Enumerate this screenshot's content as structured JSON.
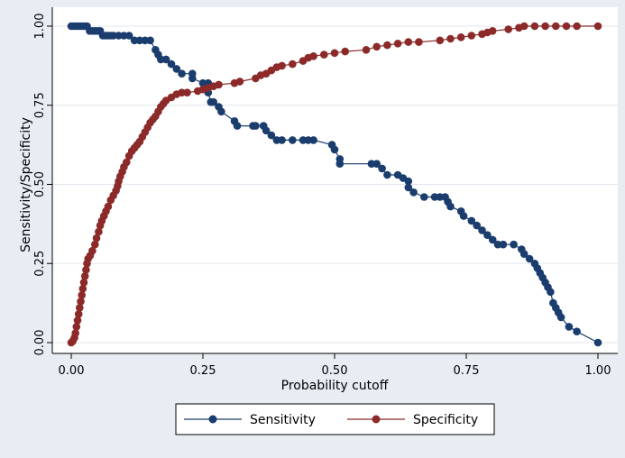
{
  "chart_data": {
    "type": "line",
    "title": "",
    "xlabel": "Probability cutoff",
    "ylabel": "Sensitivity/Specificity",
    "xlim": [
      0,
      1
    ],
    "ylim": [
      0,
      1
    ],
    "x_ticks": [
      "0.00",
      "0.25",
      "0.50",
      "0.75",
      "1.00"
    ],
    "y_ticks": [
      "0.00",
      "0.25",
      "0.50",
      "0.75",
      "1.00"
    ],
    "grid": "horizontal",
    "legend_position": "bottom",
    "series": [
      {
        "name": "Sensitivity",
        "color": "#1a3d6e",
        "marker": "circle",
        "points": [
          [
            0.0,
            1.0
          ],
          [
            0.005,
            1.0
          ],
          [
            0.01,
            1.0
          ],
          [
            0.015,
            1.0
          ],
          [
            0.02,
            1.0
          ],
          [
            0.025,
            1.0
          ],
          [
            0.03,
            1.0
          ],
          [
            0.035,
            0.985
          ],
          [
            0.04,
            0.985
          ],
          [
            0.045,
            0.985
          ],
          [
            0.05,
            0.985
          ],
          [
            0.055,
            0.985
          ],
          [
            0.06,
            0.97
          ],
          [
            0.065,
            0.97
          ],
          [
            0.07,
            0.97
          ],
          [
            0.075,
            0.97
          ],
          [
            0.08,
            0.97
          ],
          [
            0.09,
            0.97
          ],
          [
            0.1,
            0.97
          ],
          [
            0.11,
            0.97
          ],
          [
            0.12,
            0.955
          ],
          [
            0.13,
            0.955
          ],
          [
            0.14,
            0.955
          ],
          [
            0.15,
            0.955
          ],
          [
            0.16,
            0.925
          ],
          [
            0.165,
            0.91
          ],
          [
            0.17,
            0.895
          ],
          [
            0.18,
            0.895
          ],
          [
            0.19,
            0.88
          ],
          [
            0.2,
            0.865
          ],
          [
            0.21,
            0.85
          ],
          [
            0.23,
            0.85
          ],
          [
            0.23,
            0.835
          ],
          [
            0.25,
            0.82
          ],
          [
            0.26,
            0.82
          ],
          [
            0.26,
            0.79
          ],
          [
            0.265,
            0.76
          ],
          [
            0.27,
            0.76
          ],
          [
            0.28,
            0.745
          ],
          [
            0.285,
            0.73
          ],
          [
            0.31,
            0.7
          ],
          [
            0.315,
            0.685
          ],
          [
            0.345,
            0.685
          ],
          [
            0.35,
            0.685
          ],
          [
            0.365,
            0.685
          ],
          [
            0.37,
            0.67
          ],
          [
            0.38,
            0.655
          ],
          [
            0.39,
            0.64
          ],
          [
            0.4,
            0.64
          ],
          [
            0.42,
            0.64
          ],
          [
            0.44,
            0.64
          ],
          [
            0.45,
            0.64
          ],
          [
            0.46,
            0.64
          ],
          [
            0.495,
            0.625
          ],
          [
            0.5,
            0.61
          ],
          [
            0.51,
            0.58
          ],
          [
            0.51,
            0.565
          ],
          [
            0.57,
            0.565
          ],
          [
            0.58,
            0.565
          ],
          [
            0.59,
            0.55
          ],
          [
            0.6,
            0.53
          ],
          [
            0.62,
            0.53
          ],
          [
            0.63,
            0.52
          ],
          [
            0.64,
            0.51
          ],
          [
            0.64,
            0.49
          ],
          [
            0.65,
            0.475
          ],
          [
            0.67,
            0.46
          ],
          [
            0.69,
            0.46
          ],
          [
            0.7,
            0.46
          ],
          [
            0.71,
            0.46
          ],
          [
            0.715,
            0.445
          ],
          [
            0.72,
            0.43
          ],
          [
            0.74,
            0.415
          ],
          [
            0.745,
            0.4
          ],
          [
            0.76,
            0.385
          ],
          [
            0.77,
            0.37
          ],
          [
            0.78,
            0.355
          ],
          [
            0.79,
            0.34
          ],
          [
            0.8,
            0.325
          ],
          [
            0.81,
            0.31
          ],
          [
            0.82,
            0.31
          ],
          [
            0.84,
            0.31
          ],
          [
            0.855,
            0.295
          ],
          [
            0.86,
            0.28
          ],
          [
            0.87,
            0.265
          ],
          [
            0.88,
            0.25
          ],
          [
            0.885,
            0.235
          ],
          [
            0.89,
            0.22
          ],
          [
            0.895,
            0.205
          ],
          [
            0.9,
            0.19
          ],
          [
            0.905,
            0.175
          ],
          [
            0.91,
            0.16
          ],
          [
            0.915,
            0.125
          ],
          [
            0.92,
            0.11
          ],
          [
            0.925,
            0.095
          ],
          [
            0.93,
            0.08
          ],
          [
            0.945,
            0.05
          ],
          [
            0.96,
            0.035
          ],
          [
            1.0,
            0.0
          ]
        ]
      },
      {
        "name": "Specificity",
        "color": "#8c2a2a",
        "marker": "circle",
        "points": [
          [
            0.0,
            0.0
          ],
          [
            0.003,
            0.005
          ],
          [
            0.006,
            0.015
          ],
          [
            0.008,
            0.03
          ],
          [
            0.01,
            0.05
          ],
          [
            0.012,
            0.07
          ],
          [
            0.014,
            0.09
          ],
          [
            0.016,
            0.11
          ],
          [
            0.018,
            0.13
          ],
          [
            0.02,
            0.15
          ],
          [
            0.022,
            0.17
          ],
          [
            0.024,
            0.19
          ],
          [
            0.026,
            0.21
          ],
          [
            0.028,
            0.23
          ],
          [
            0.03,
            0.25
          ],
          [
            0.032,
            0.265
          ],
          [
            0.036,
            0.275
          ],
          [
            0.04,
            0.29
          ],
          [
            0.045,
            0.31
          ],
          [
            0.048,
            0.33
          ],
          [
            0.052,
            0.35
          ],
          [
            0.055,
            0.37
          ],
          [
            0.058,
            0.385
          ],
          [
            0.062,
            0.4
          ],
          [
            0.066,
            0.415
          ],
          [
            0.07,
            0.43
          ],
          [
            0.075,
            0.45
          ],
          [
            0.08,
            0.465
          ],
          [
            0.085,
            0.48
          ],
          [
            0.088,
            0.495
          ],
          [
            0.09,
            0.51
          ],
          [
            0.093,
            0.525
          ],
          [
            0.097,
            0.54
          ],
          [
            0.1,
            0.555
          ],
          [
            0.105,
            0.57
          ],
          [
            0.11,
            0.59
          ],
          [
            0.115,
            0.605
          ],
          [
            0.12,
            0.615
          ],
          [
            0.125,
            0.625
          ],
          [
            0.13,
            0.635
          ],
          [
            0.135,
            0.65
          ],
          [
            0.14,
            0.665
          ],
          [
            0.145,
            0.68
          ],
          [
            0.15,
            0.695
          ],
          [
            0.155,
            0.705
          ],
          [
            0.16,
            0.715
          ],
          [
            0.165,
            0.73
          ],
          [
            0.17,
            0.745
          ],
          [
            0.175,
            0.755
          ],
          [
            0.18,
            0.765
          ],
          [
            0.19,
            0.775
          ],
          [
            0.2,
            0.785
          ],
          [
            0.21,
            0.79
          ],
          [
            0.22,
            0.79
          ],
          [
            0.24,
            0.795
          ],
          [
            0.25,
            0.8
          ],
          [
            0.26,
            0.805
          ],
          [
            0.27,
            0.81
          ],
          [
            0.28,
            0.815
          ],
          [
            0.31,
            0.82
          ],
          [
            0.32,
            0.825
          ],
          [
            0.35,
            0.835
          ],
          [
            0.36,
            0.845
          ],
          [
            0.37,
            0.85
          ],
          [
            0.38,
            0.86
          ],
          [
            0.39,
            0.87
          ],
          [
            0.4,
            0.875
          ],
          [
            0.42,
            0.88
          ],
          [
            0.44,
            0.89
          ],
          [
            0.45,
            0.9
          ],
          [
            0.46,
            0.905
          ],
          [
            0.48,
            0.91
          ],
          [
            0.5,
            0.915
          ],
          [
            0.52,
            0.92
          ],
          [
            0.56,
            0.925
          ],
          [
            0.58,
            0.935
          ],
          [
            0.6,
            0.94
          ],
          [
            0.62,
            0.945
          ],
          [
            0.64,
            0.95
          ],
          [
            0.66,
            0.95
          ],
          [
            0.7,
            0.955
          ],
          [
            0.72,
            0.96
          ],
          [
            0.74,
            0.965
          ],
          [
            0.76,
            0.97
          ],
          [
            0.78,
            0.975
          ],
          [
            0.79,
            0.98
          ],
          [
            0.8,
            0.985
          ],
          [
            0.83,
            0.99
          ],
          [
            0.85,
            0.995
          ],
          [
            0.86,
            1.0
          ],
          [
            0.88,
            1.0
          ],
          [
            0.9,
            1.0
          ],
          [
            0.92,
            1.0
          ],
          [
            0.94,
            1.0
          ],
          [
            0.96,
            1.0
          ],
          [
            1.0,
            1.0
          ]
        ]
      }
    ]
  },
  "colors": {
    "background": "#e8ecf3",
    "plot_background": "#ffffff",
    "grid": "#e3e7ee",
    "axis": "#000000"
  }
}
